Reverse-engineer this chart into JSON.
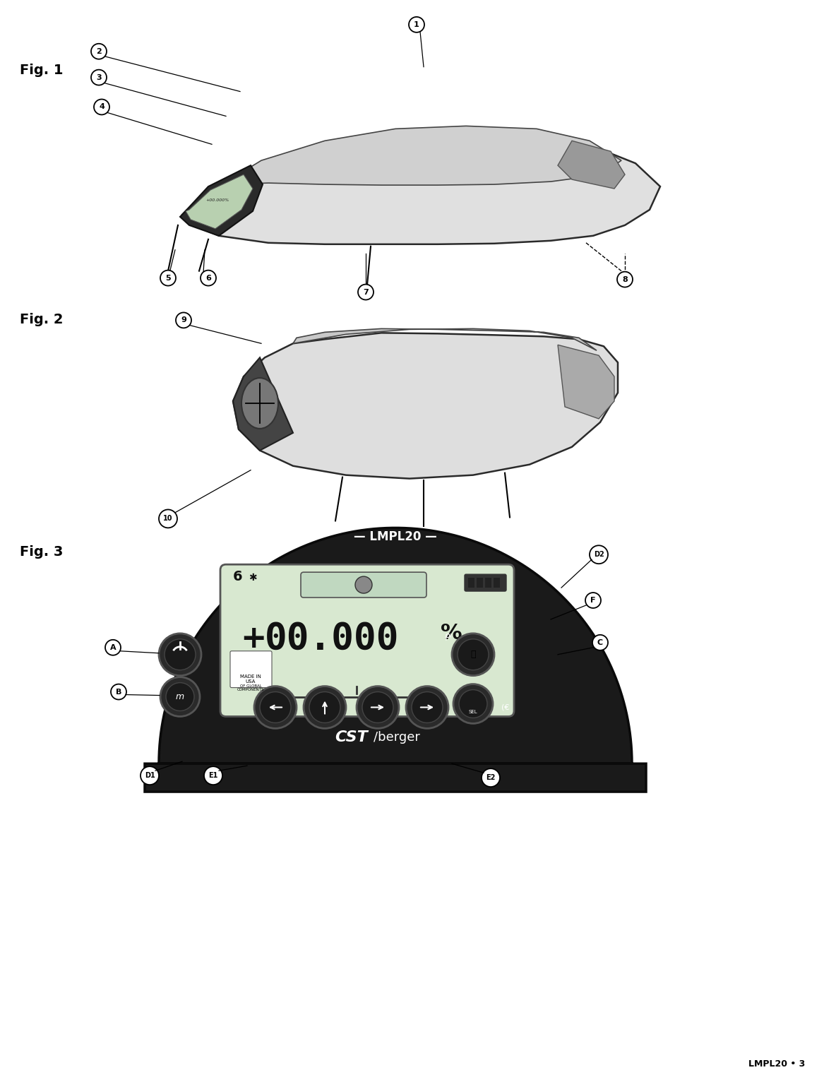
{
  "page_width": 11.67,
  "page_height": 15.15,
  "background_color": "#ffffff",
  "fig1_label": "Fig. 1",
  "fig2_label": "Fig. 2",
  "fig3_label": "Fig. 3",
  "footer_text": "LMPL20 • 3",
  "callouts_fig1": [
    "1",
    "2",
    "3",
    "4",
    "5",
    "6",
    "7",
    "8"
  ],
  "callouts_fig2": [
    "9",
    "10"
  ],
  "callouts_fig3": [
    "A",
    "B",
    "D1",
    "E1",
    "E2",
    "D2",
    "F",
    "C"
  ],
  "display_text": "+  00.000",
  "display_percent": "%",
  "display_six": "6",
  "brand_text_cst": "CST",
  "brand_text_berger": "/berger",
  "lmpl20_display": "LMPL20"
}
